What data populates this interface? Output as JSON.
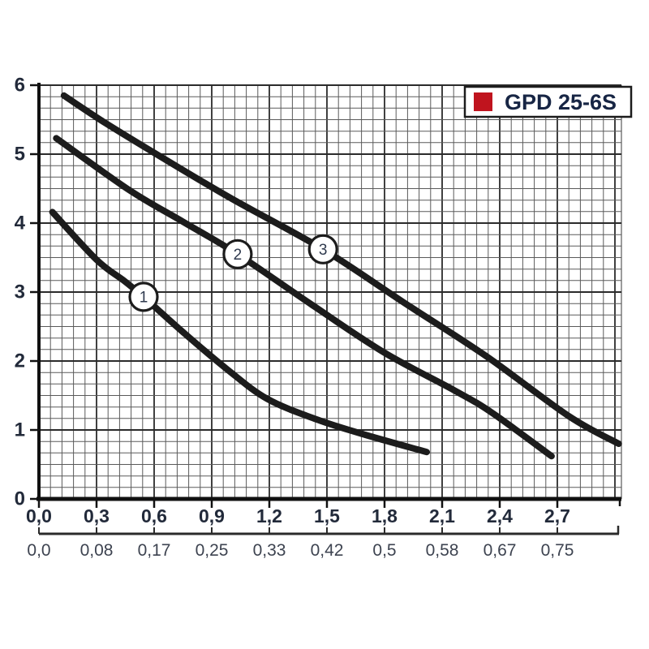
{
  "legend": {
    "label": "GPD 25-6S",
    "swatch_color": "#c0141e"
  },
  "colors": {
    "curve": "#1c1c1c",
    "grid_minor": "#5a5a5a",
    "grid_major": "#2b2b2b",
    "axis": "#111111",
    "label_primary": "#222a3a",
    "label_secondary": "#3d4350",
    "marker_number": "#2f3a4e",
    "legend_text": "#172544",
    "legend_border": "#1c1c1c",
    "background": "#ffffff"
  },
  "chart_data": {
    "type": "line",
    "title": "GPD 25-6S pump performance curves (head vs flow)",
    "xlabel": "",
    "ylabel": "",
    "xlim": [
      0,
      3.034
    ],
    "ylim": [
      0,
      6
    ],
    "x_major_step": 0.3,
    "x_minor_step": 0.06,
    "y_major_step": 1,
    "y_minor_per_unit": 6,
    "grid": true,
    "legend_position": "top-right",
    "y_tick_labels": [
      "0",
      "1",
      "2",
      "3",
      "4",
      "5",
      "6"
    ],
    "x_tick_labels": [
      "0,0",
      "0,3",
      "0,6",
      "0,9",
      "1,2",
      "1,5",
      "1,8",
      "2,1",
      "2,4",
      "2,7"
    ],
    "secondary_x_labels": [
      "0,0",
      "0,08",
      "0,17",
      "0,25",
      "0,33",
      "0,42",
      "0,5",
      "0,58",
      "0,67",
      "0,75"
    ],
    "series": [
      {
        "name": "1",
        "marker_at": [
          0.545,
          2.93
        ],
        "points": [
          [
            0.07,
            4.16
          ],
          [
            0.3,
            3.47
          ],
          [
            0.445,
            3.16
          ],
          [
            0.545,
            2.93
          ],
          [
            0.75,
            2.42
          ],
          [
            0.98,
            1.88
          ],
          [
            1.19,
            1.45
          ],
          [
            1.45,
            1.15
          ],
          [
            1.7,
            0.93
          ],
          [
            2.02,
            0.68
          ]
        ]
      },
      {
        "name": "2",
        "marker_at": [
          1.035,
          3.55
        ],
        "points": [
          [
            0.09,
            5.23
          ],
          [
            0.47,
            4.48
          ],
          [
            0.75,
            4.02
          ],
          [
            1.035,
            3.55
          ],
          [
            1.43,
            2.8
          ],
          [
            1.8,
            2.12
          ],
          [
            2.16,
            1.58
          ],
          [
            2.36,
            1.25
          ],
          [
            2.67,
            0.62
          ]
        ]
      },
      {
        "name": "3",
        "marker_at": [
          1.48,
          3.62
        ],
        "points": [
          [
            0.13,
            5.85
          ],
          [
            0.33,
            5.48
          ],
          [
            0.6,
            5.02
          ],
          [
            1.0,
            4.36
          ],
          [
            1.48,
            3.62
          ],
          [
            1.9,
            2.85
          ],
          [
            2.33,
            2.07
          ],
          [
            2.76,
            1.2
          ],
          [
            3.02,
            0.8
          ]
        ]
      }
    ]
  }
}
